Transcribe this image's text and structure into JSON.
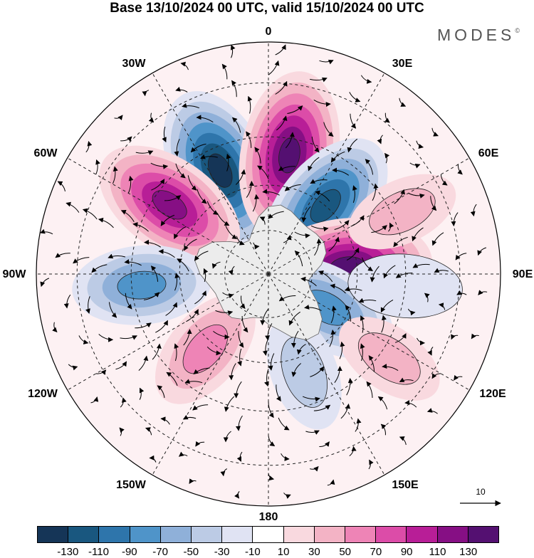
{
  "header": {
    "title": "Base 13/10/2024 00 UTC, valid 15/10/2024 00 UTC",
    "brand": "MODES",
    "brand_mark": "©"
  },
  "map": {
    "projection": "south-polar-stereographic",
    "longitude_labels": {
      "top": "0",
      "top_right": "30E",
      "upper_right": "60E",
      "right": "90E",
      "lower_right": "120E",
      "bottom_right": "150E",
      "bottom": "180",
      "bottom_left": "150W",
      "lower_left": "120W",
      "left": "90W",
      "upper_left": "60W",
      "top_left": "30W"
    },
    "anomaly_centers": [
      {
        "lon": -25,
        "lat": -52,
        "value": -140,
        "color": "#123b63"
      },
      {
        "lon": 10,
        "lat": -50,
        "value": 140,
        "color": "#5a1073"
      },
      {
        "lon": 40,
        "lat": -60,
        "value": -120,
        "color": "#0f507c"
      },
      {
        "lon": -55,
        "lat": -50,
        "value": 120,
        "color": "#8b168f"
      },
      {
        "lon": 85,
        "lat": -63,
        "value": 140,
        "color": "#5a1073"
      },
      {
        "lon": -95,
        "lat": -48,
        "value": -80,
        "color": "#4a8cc0"
      },
      {
        "lon": 120,
        "lat": -67,
        "value": -90,
        "color": "#2b6ea7"
      },
      {
        "lon": -140,
        "lat": -57,
        "value": 60,
        "color": "#e57dbb"
      },
      {
        "lon": 160,
        "lat": -55,
        "value": -40,
        "color": "#c3cde5"
      },
      {
        "lon": 125,
        "lat": -42,
        "value": 30,
        "color": "#f2c7cf"
      },
      {
        "lon": 95,
        "lat": -45,
        "value": -30,
        "color": "#d3daeb"
      },
      {
        "lon": 65,
        "lat": -42,
        "value": 30,
        "color": "#f2c7cf"
      }
    ],
    "reference_vector": {
      "label": "10"
    }
  },
  "colorbar": {
    "colors": [
      "#153557",
      "#19577f",
      "#2e75ab",
      "#4f94c9",
      "#8fb0d9",
      "#bccbe5",
      "#e0e3f3",
      "#ffffff",
      "#f9d9df",
      "#f3b3c5",
      "#ee84b6",
      "#dc4ca8",
      "#b81e97",
      "#860f84",
      "#541071"
    ],
    "tick_labels": [
      "-130",
      "-110",
      "-90",
      "-70",
      "-50",
      "-30",
      "-10",
      "10",
      "30",
      "50",
      "70",
      "90",
      "110",
      "130"
    ]
  }
}
